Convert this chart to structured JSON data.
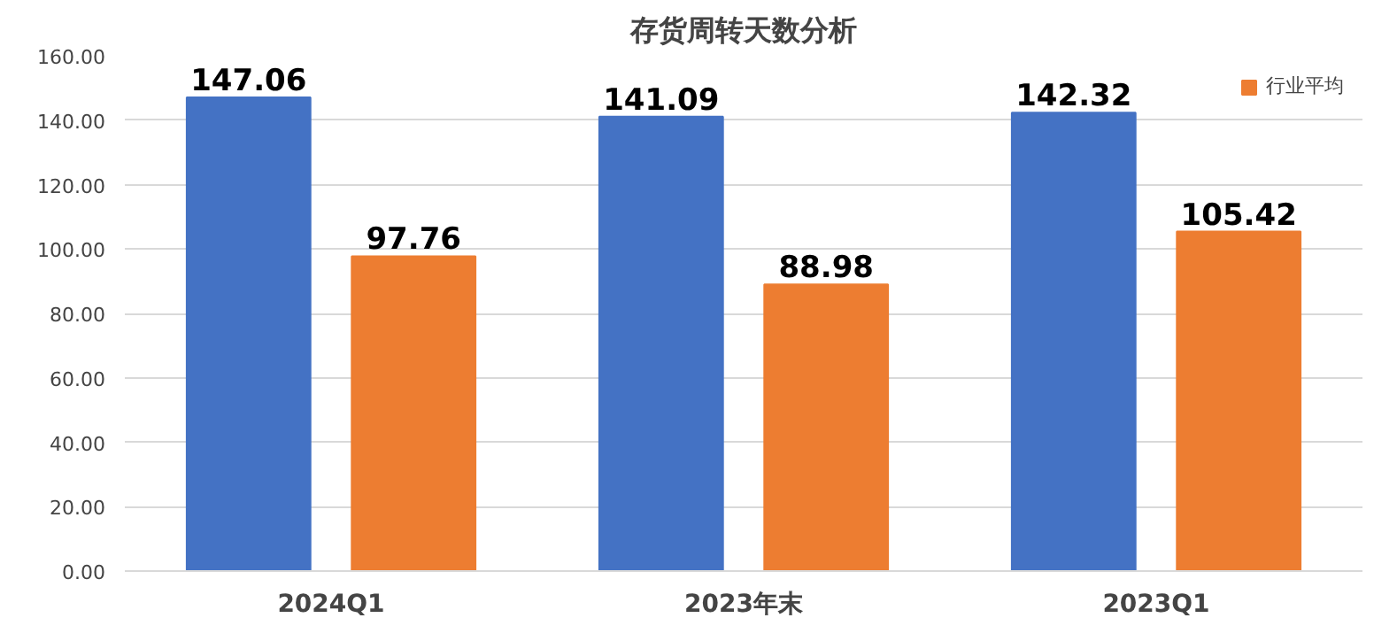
{
  "chart_data": {
    "type": "bar",
    "title": "存货周转天数分析",
    "categories": [
      "2024Q1",
      "2023年末",
      "2023Q1"
    ],
    "series": [
      {
        "color": "#4472c4",
        "values": [
          147.06,
          141.09,
          142.32
        ]
      },
      {
        "name": "行业平均",
        "color": "#ed7d31",
        "values": [
          97.76,
          88.98,
          105.42
        ]
      }
    ],
    "ylim": [
      0,
      160
    ],
    "yticks": [
      {
        "value": 0,
        "label": "0.00"
      },
      {
        "value": 20,
        "label": "20.00"
      },
      {
        "value": 40,
        "label": "40.00"
      },
      {
        "value": 60,
        "label": "60.00"
      },
      {
        "value": 80,
        "label": "80.00"
      },
      {
        "value": 100,
        "label": "100.00"
      },
      {
        "value": 120,
        "label": "120.00"
      },
      {
        "value": 140,
        "label": "140.00"
      },
      {
        "value": 160,
        "label": "160.00"
      }
    ],
    "grid": "y",
    "legend": "top right",
    "data_labels": true
  }
}
